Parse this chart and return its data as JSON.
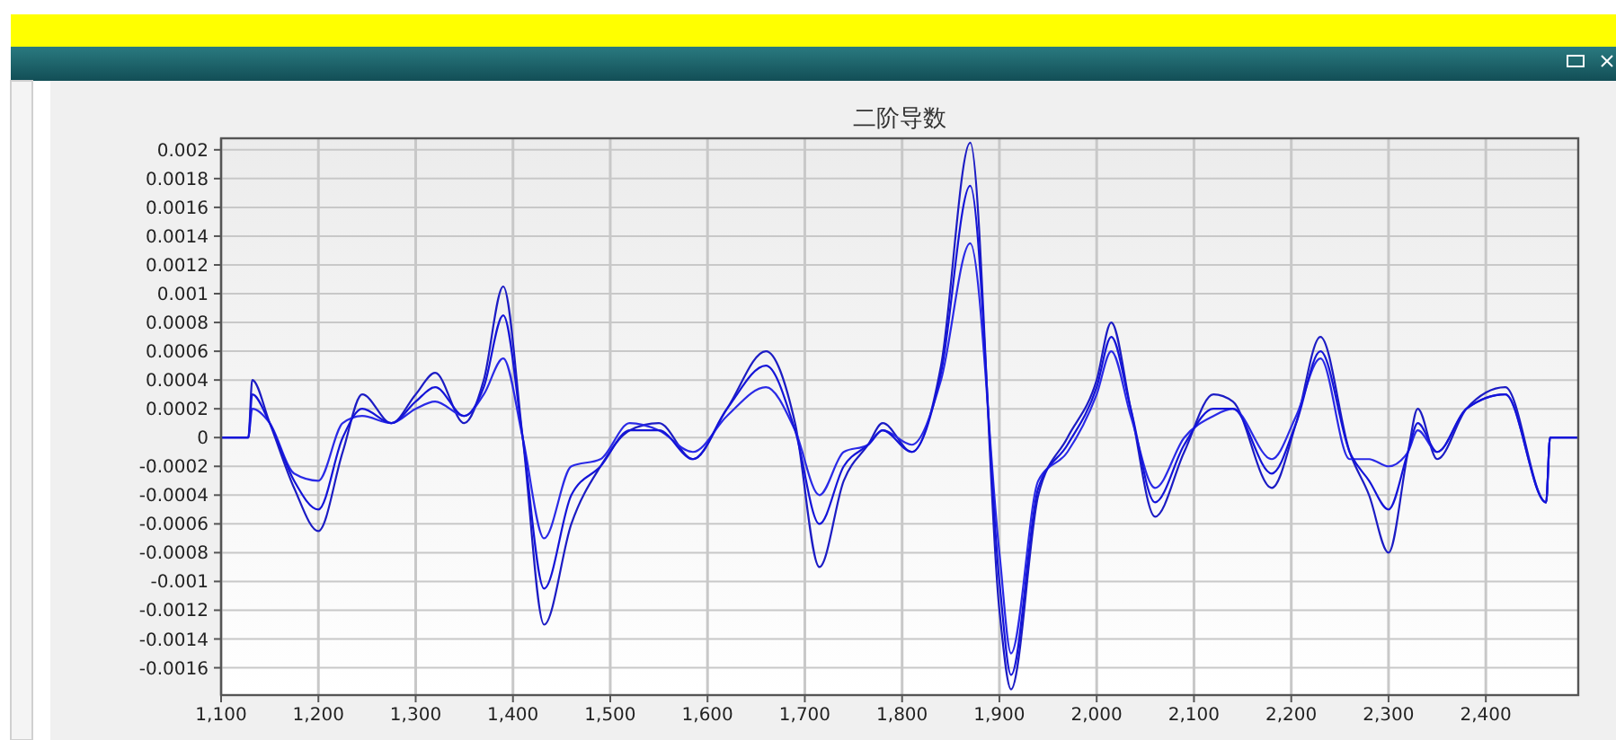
{
  "chart_data": {
    "type": "line",
    "title": "二阶导数",
    "x": [
      1100,
      1128,
      1132,
      1150,
      1175,
      1200,
      1225,
      1245,
      1275,
      1300,
      1320,
      1350,
      1370,
      1390,
      1410,
      1432,
      1460,
      1490,
      1520,
      1550,
      1585,
      1620,
      1660,
      1690,
      1715,
      1740,
      1765,
      1780,
      1810,
      1840,
      1870,
      1900,
      1912,
      1940,
      1970,
      2000,
      2015,
      2035,
      2060,
      2090,
      2120,
      2140,
      2180,
      2205,
      2230,
      2260,
      2280,
      2300,
      2320,
      2330,
      2350,
      2380,
      2420,
      2462,
      2466,
      2495
    ],
    "series": [
      {
        "color": "#1c1cc4",
        "values": [
          0,
          0,
          0.0004,
          0.0001,
          -0.00035,
          -0.00065,
          -0.0001,
          0.0003,
          0.0001,
          0.0003,
          0.00045,
          0.0001,
          0.0004,
          0.00105,
          0,
          -0.0013,
          -0.0006,
          -0.0002,
          5e-05,
          0.0001,
          -0.00015,
          0.0002,
          0.0006,
          0.0001,
          -0.0009,
          -0.0003,
          -5e-05,
          0.0001,
          -0.0001,
          0.0005,
          0.00205,
          -0.0012,
          -0.00175,
          -0.0004,
          0,
          0.0004,
          0.0008,
          0.0002,
          -0.00055,
          -0.0001,
          0.0003,
          0.00025,
          -0.00035,
          0.0001,
          0.0007,
          -0.0001,
          -0.0004,
          -0.0008,
          -0.0001,
          0.0002,
          -0.00015,
          0.0002,
          0.00035,
          -0.00045,
          0,
          0
        ]
      },
      {
        "color": "#2a2ae6",
        "values": [
          0,
          0,
          0.0002,
          0.0001,
          -0.00025,
          -0.0003,
          0.0001,
          0.00015,
          0.0001,
          0.0002,
          0.00025,
          0.00015,
          0.0003,
          0.00055,
          0,
          -0.0007,
          -0.0002,
          -0.00015,
          0.0001,
          5e-05,
          -0.0001,
          0.00015,
          0.00035,
          5e-05,
          -0.0004,
          -0.0001,
          -5e-05,
          5e-05,
          -5e-05,
          0.0004,
          0.00135,
          -0.0008,
          -0.0015,
          -0.0003,
          -0.0001,
          0.0003,
          0.0006,
          0.00015,
          -0.00035,
          0,
          0.00015,
          0.0002,
          -0.00015,
          0.00015,
          0.00055,
          -0.00015,
          -0.00015,
          -0.0002,
          -0.0001,
          5e-05,
          -0.0001,
          0.0002,
          0.0003,
          -0.00045,
          0,
          0
        ]
      },
      {
        "color": "#1414d8",
        "values": [
          0,
          0,
          0.0003,
          0.0001,
          -0.0003,
          -0.0005,
          0,
          0.0002,
          0.0001,
          0.00025,
          0.00035,
          0.00015,
          0.00035,
          0.00085,
          0,
          -0.00105,
          -0.0004,
          -0.0002,
          5e-05,
          5e-05,
          -0.00015,
          0.0002,
          0.0005,
          5e-05,
          -0.0006,
          -0.0002,
          -5e-05,
          5e-05,
          -0.0001,
          0.00045,
          0.00175,
          -0.001,
          -0.00165,
          -0.00035,
          -5e-05,
          0.00035,
          0.0007,
          0.0002,
          -0.00045,
          -5e-05,
          0.0002,
          0.0002,
          -0.00025,
          0.0001,
          0.0006,
          -0.0001,
          -0.0003,
          -0.0005,
          -0.0001,
          0.0001,
          -0.0001,
          0.0002,
          0.0003,
          -0.00045,
          0,
          0
        ]
      }
    ],
    "xlim": [
      1100,
      2495
    ],
    "xticks": [
      {
        "value": 1100,
        "label": "1,100"
      },
      {
        "value": 1200,
        "label": "1,200"
      },
      {
        "value": 1300,
        "label": "1,300"
      },
      {
        "value": 1400,
        "label": "1,400"
      },
      {
        "value": 1500,
        "label": "1,500"
      },
      {
        "value": 1600,
        "label": "1,600"
      },
      {
        "value": 1700,
        "label": "1,700"
      },
      {
        "value": 1800,
        "label": "1,800"
      },
      {
        "value": 1900,
        "label": "1,900"
      },
      {
        "value": 2000,
        "label": "2,000"
      },
      {
        "value": 2100,
        "label": "2,100"
      },
      {
        "value": 2200,
        "label": "2,200"
      },
      {
        "value": 2300,
        "label": "2,300"
      },
      {
        "value": 2400,
        "label": "2,400"
      }
    ],
    "ylim": [
      -0.00179,
      0.00208
    ],
    "yticks": [
      -0.0016,
      -0.0014,
      -0.0012,
      -0.001,
      -0.0008,
      -0.0006,
      -0.0004,
      -0.0002,
      0,
      0.0002,
      0.0004,
      0.0006,
      0.0008,
      0.001,
      0.0012,
      0.0014,
      0.0016,
      0.0018,
      0.002
    ],
    "grid": true,
    "marker": "none",
    "line_style": "solid"
  }
}
